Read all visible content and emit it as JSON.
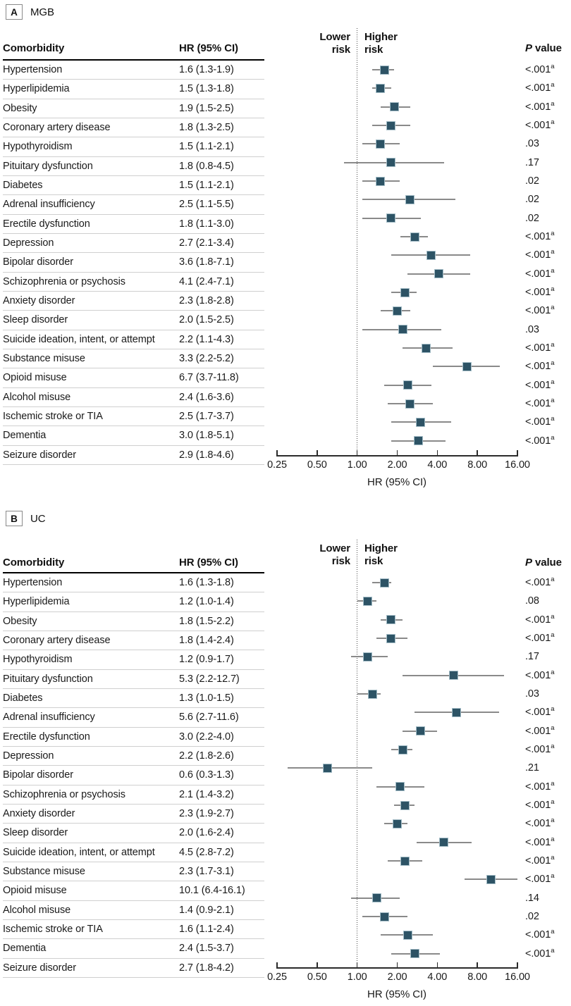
{
  "labels": {
    "comorbidity": "Comorbidity",
    "hr_ci": "HR (95% CI)",
    "p_italic": "P",
    "p_rest": " value",
    "lower_risk": "Lower risk",
    "higher_risk": "Higher risk"
  },
  "colors": {
    "marker_fill": "#2d5365",
    "marker_border": "#a3bcc6",
    "ci_line": "#8a8a8a",
    "reference_line": "#4a4a4a",
    "row_separator": "#cfcfcf",
    "header_rule": "#000000",
    "text": "#1a1a1a"
  },
  "chart_data": [
    {
      "type": "forest",
      "panel_label": "A",
      "title": "MGB",
      "xlabel": "HR (95% CI)",
      "x_scale": "log2",
      "xlim": [
        0.25,
        16
      ],
      "x_ticks": [
        0.25,
        0.5,
        1,
        2,
        4,
        8,
        16
      ],
      "x_tick_labels": [
        "0.25",
        "0.50",
        "1.00",
        "2.00",
        "4.00",
        "8.00",
        "16.00"
      ],
      "reference_line": 1,
      "rows": [
        {
          "name": "Hypertension",
          "hr_text": "1.6 (1.3-1.9)",
          "hr": 1.6,
          "lo": 1.3,
          "hi": 1.9,
          "p": "<.001",
          "sup": "a"
        },
        {
          "name": "Hyperlipidemia",
          "hr_text": "1.5 (1.3-1.8)",
          "hr": 1.5,
          "lo": 1.3,
          "hi": 1.8,
          "p": "<.001",
          "sup": "a"
        },
        {
          "name": "Obesity",
          "hr_text": "1.9 (1.5-2.5)",
          "hr": 1.9,
          "lo": 1.5,
          "hi": 2.5,
          "p": "<.001",
          "sup": "a"
        },
        {
          "name": "Coronary artery disease",
          "hr_text": "1.8 (1.3-2.5)",
          "hr": 1.8,
          "lo": 1.3,
          "hi": 2.5,
          "p": "<.001",
          "sup": "a"
        },
        {
          "name": "Hypothyroidism",
          "hr_text": "1.5 (1.1-2.1)",
          "hr": 1.5,
          "lo": 1.1,
          "hi": 2.1,
          "p": ".03",
          "sup": ""
        },
        {
          "name": "Pituitary dysfunction",
          "hr_text": "1.8 (0.8-4.5)",
          "hr": 1.8,
          "lo": 0.8,
          "hi": 4.5,
          "p": ".17",
          "sup": ""
        },
        {
          "name": "Diabetes",
          "hr_text": "1.5 (1.1-2.1)",
          "hr": 1.5,
          "lo": 1.1,
          "hi": 2.1,
          "p": ".02",
          "sup": ""
        },
        {
          "name": "Adrenal insufficiency",
          "hr_text": "2.5 (1.1-5.5)",
          "hr": 2.5,
          "lo": 1.1,
          "hi": 5.5,
          "p": ".02",
          "sup": ""
        },
        {
          "name": "Erectile dysfunction",
          "hr_text": "1.8 (1.1-3.0)",
          "hr": 1.8,
          "lo": 1.1,
          "hi": 3.0,
          "p": ".02",
          "sup": ""
        },
        {
          "name": "Depression",
          "hr_text": "2.7 (2.1-3.4)",
          "hr": 2.7,
          "lo": 2.1,
          "hi": 3.4,
          "p": "<.001",
          "sup": "a"
        },
        {
          "name": "Bipolar disorder",
          "hr_text": "3.6 (1.8-7.1)",
          "hr": 3.6,
          "lo": 1.8,
          "hi": 7.1,
          "p": "<.001",
          "sup": "a"
        },
        {
          "name": "Schizophrenia or psychosis",
          "hr_text": "4.1 (2.4-7.1)",
          "hr": 4.1,
          "lo": 2.4,
          "hi": 7.1,
          "p": "<.001",
          "sup": "a"
        },
        {
          "name": "Anxiety disorder",
          "hr_text": "2.3 (1.8-2.8)",
          "hr": 2.3,
          "lo": 1.8,
          "hi": 2.8,
          "p": "<.001",
          "sup": "a"
        },
        {
          "name": "Sleep disorder",
          "hr_text": "2.0 (1.5-2.5)",
          "hr": 2.0,
          "lo": 1.5,
          "hi": 2.5,
          "p": "<.001",
          "sup": "a"
        },
        {
          "name": "Suicide ideation, intent, or attempt",
          "hr_text": "2.2 (1.1-4.3)",
          "hr": 2.2,
          "lo": 1.1,
          "hi": 4.3,
          "p": ".03",
          "sup": ""
        },
        {
          "name": "Substance misuse",
          "hr_text": "3.3 (2.2-5.2)",
          "hr": 3.3,
          "lo": 2.2,
          "hi": 5.2,
          "p": "<.001",
          "sup": "a"
        },
        {
          "name": "Opioid misuse",
          "hr_text": "6.7 (3.7-11.8)",
          "hr": 6.7,
          "lo": 3.7,
          "hi": 11.8,
          "p": "<.001",
          "sup": "a"
        },
        {
          "name": "Alcohol misuse",
          "hr_text": "2.4 (1.6-3.6)",
          "hr": 2.4,
          "lo": 1.6,
          "hi": 3.6,
          "p": "<.001",
          "sup": "a"
        },
        {
          "name": "Ischemic stroke or TIA",
          "hr_text": "2.5 (1.7-3.7)",
          "hr": 2.5,
          "lo": 1.7,
          "hi": 3.7,
          "p": "<.001",
          "sup": "a"
        },
        {
          "name": "Dementia",
          "hr_text": "3.0 (1.8-5.1)",
          "hr": 3.0,
          "lo": 1.8,
          "hi": 5.1,
          "p": "<.001",
          "sup": "a"
        },
        {
          "name": "Seizure disorder",
          "hr_text": "2.9 (1.8-4.6)",
          "hr": 2.9,
          "lo": 1.8,
          "hi": 4.6,
          "p": "<.001",
          "sup": "a"
        }
      ]
    },
    {
      "type": "forest",
      "panel_label": "B",
      "title": "UC",
      "xlabel": "HR (95% CI)",
      "x_scale": "log2",
      "xlim": [
        0.25,
        16
      ],
      "x_ticks": [
        0.25,
        0.5,
        1,
        2,
        4,
        8,
        16
      ],
      "x_tick_labels": [
        "0.25",
        "0.50",
        "1.00",
        "2.00",
        "4.00",
        "8.00",
        "16.00"
      ],
      "reference_line": 1,
      "rows": [
        {
          "name": "Hypertension",
          "hr_text": "1.6 (1.3-1.8)",
          "hr": 1.6,
          "lo": 1.3,
          "hi": 1.8,
          "p": "<.001",
          "sup": "a"
        },
        {
          "name": "Hyperlipidemia",
          "hr_text": "1.2 (1.0-1.4)",
          "hr": 1.2,
          "lo": 1.0,
          "hi": 1.4,
          "p": ".08",
          "sup": ""
        },
        {
          "name": "Obesity",
          "hr_text": "1.8 (1.5-2.2)",
          "hr": 1.8,
          "lo": 1.5,
          "hi": 2.2,
          "p": "<.001",
          "sup": "a"
        },
        {
          "name": "Coronary artery disease",
          "hr_text": "1.8 (1.4-2.4)",
          "hr": 1.8,
          "lo": 1.4,
          "hi": 2.4,
          "p": "<.001",
          "sup": "a"
        },
        {
          "name": "Hypothyroidism",
          "hr_text": "1.2 (0.9-1.7)",
          "hr": 1.2,
          "lo": 0.9,
          "hi": 1.7,
          "p": ".17",
          "sup": ""
        },
        {
          "name": "Pituitary dysfunction",
          "hr_text": "5.3 (2.2-12.7)",
          "hr": 5.3,
          "lo": 2.2,
          "hi": 12.7,
          "p": "<.001",
          "sup": "a"
        },
        {
          "name": "Diabetes",
          "hr_text": "1.3 (1.0-1.5)",
          "hr": 1.3,
          "lo": 1.0,
          "hi": 1.5,
          "p": ".03",
          "sup": ""
        },
        {
          "name": "Adrenal insufficiency",
          "hr_text": "5.6 (2.7-11.6)",
          "hr": 5.6,
          "lo": 2.7,
          "hi": 11.6,
          "p": "<.001",
          "sup": "a"
        },
        {
          "name": "Erectile dysfunction",
          "hr_text": "3.0 (2.2-4.0)",
          "hr": 3.0,
          "lo": 2.2,
          "hi": 4.0,
          "p": "<.001",
          "sup": "a"
        },
        {
          "name": "Depression",
          "hr_text": "2.2 (1.8-2.6)",
          "hr": 2.2,
          "lo": 1.8,
          "hi": 2.6,
          "p": "<.001",
          "sup": "a"
        },
        {
          "name": "Bipolar disorder",
          "hr_text": "0.6 (0.3-1.3)",
          "hr": 0.6,
          "lo": 0.3,
          "hi": 1.3,
          "p": ".21",
          "sup": ""
        },
        {
          "name": "Schizophrenia or psychosis",
          "hr_text": "2.1 (1.4-3.2)",
          "hr": 2.1,
          "lo": 1.4,
          "hi": 3.2,
          "p": "<.001",
          "sup": "a"
        },
        {
          "name": "Anxiety disorder",
          "hr_text": "2.3 (1.9-2.7)",
          "hr": 2.3,
          "lo": 1.9,
          "hi": 2.7,
          "p": "<.001",
          "sup": "a"
        },
        {
          "name": "Sleep disorder",
          "hr_text": "2.0 (1.6-2.4)",
          "hr": 2.0,
          "lo": 1.6,
          "hi": 2.4,
          "p": "<.001",
          "sup": "a"
        },
        {
          "name": "Suicide ideation, intent, or attempt",
          "hr_text": "4.5 (2.8-7.2)",
          "hr": 4.5,
          "lo": 2.8,
          "hi": 7.2,
          "p": "<.001",
          "sup": "a"
        },
        {
          "name": "Substance misuse",
          "hr_text": "2.3 (1.7-3.1)",
          "hr": 2.3,
          "lo": 1.7,
          "hi": 3.1,
          "p": "<.001",
          "sup": "a"
        },
        {
          "name": "Opioid misuse",
          "hr_text": "10.1 (6.4-16.1)",
          "hr": 10.1,
          "lo": 6.4,
          "hi": 16.1,
          "p": "<.001",
          "sup": "a"
        },
        {
          "name": "Alcohol misuse",
          "hr_text": "1.4 (0.9-2.1)",
          "hr": 1.4,
          "lo": 0.9,
          "hi": 2.1,
          "p": ".14",
          "sup": ""
        },
        {
          "name": "Ischemic stroke or TIA",
          "hr_text": "1.6 (1.1-2.4)",
          "hr": 1.6,
          "lo": 1.1,
          "hi": 2.4,
          "p": ".02",
          "sup": ""
        },
        {
          "name": "Dementia",
          "hr_text": "2.4 (1.5-3.7)",
          "hr": 2.4,
          "lo": 1.5,
          "hi": 3.7,
          "p": "<.001",
          "sup": "a"
        },
        {
          "name": "Seizure disorder",
          "hr_text": "2.7 (1.8-4.2)",
          "hr": 2.7,
          "lo": 1.8,
          "hi": 4.2,
          "p": "<.001",
          "sup": "a"
        }
      ]
    }
  ]
}
